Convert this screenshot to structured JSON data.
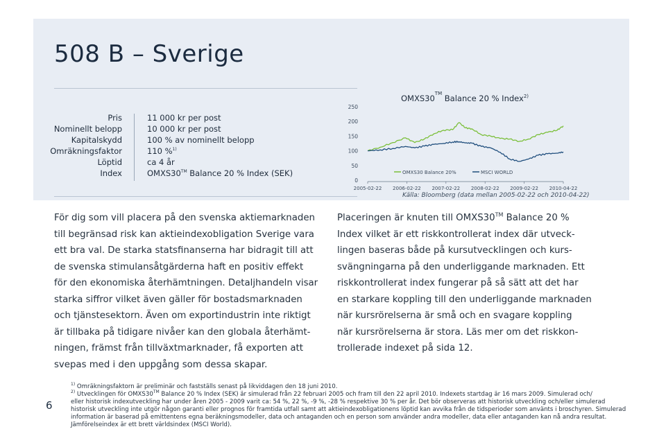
{
  "title": "508 B – Sverige",
  "specs": {
    "labels": [
      "Pris",
      "Nominellt belopp",
      "Kapitalskydd",
      "Omräkningsfaktor",
      "Löptid",
      "Index"
    ],
    "values": [
      "11 000 kr per post",
      "10 000 kr per post",
      "100 % av nominellt belopp",
      "110 %",
      "ca 4 år",
      "OMXS30"
    ],
    "omr_footnote": "1)",
    "index_tm": "TM",
    "index_rest": " Balance 20 % Index (SEK)"
  },
  "chart_data": {
    "type": "line",
    "title_main": "OMXS30",
    "title_tm": "TM",
    "title_rest": " Balance 20 % Index",
    "title_footnote": "2)",
    "ylim": [
      0,
      250
    ],
    "yticks": [
      "0",
      "50",
      "100",
      "150",
      "200",
      "250"
    ],
    "x_tick_labels": [
      "2005-02-22",
      "2006-02-22",
      "2007-02-22",
      "2008-02-22",
      "2009-02-22",
      "2010-04-22"
    ],
    "x_range": [
      "2005-02-22",
      "2010-04-22"
    ],
    "legend_position": "bottom-inside",
    "grid": false,
    "series": [
      {
        "name": "OMXS30 Balance 20%",
        "color": "#7bbf3a",
        "x": [
          "2005-02-22",
          "2005-06-22",
          "2005-10-22",
          "2006-02-22",
          "2006-05-22",
          "2006-08-22",
          "2006-11-22",
          "2007-02-22",
          "2007-05-22",
          "2007-07-22",
          "2007-09-22",
          "2007-11-22",
          "2008-02-22",
          "2008-05-22",
          "2008-08-22",
          "2008-11-22",
          "2009-02-22",
          "2009-05-22",
          "2009-08-22",
          "2009-11-22",
          "2010-02-22",
          "2010-04-22"
        ],
        "values": [
          100,
          112,
          128,
          144,
          128,
          140,
          158,
          170,
          172,
          196,
          178,
          175,
          155,
          150,
          142,
          140,
          132,
          140,
          155,
          163,
          170,
          185
        ]
      },
      {
        "name": "MSCI WORLD",
        "color": "#1f4e7d",
        "x": [
          "2005-02-22",
          "2005-06-22",
          "2005-10-22",
          "2006-02-22",
          "2006-05-22",
          "2006-08-22",
          "2006-11-22",
          "2007-02-22",
          "2007-05-22",
          "2007-07-22",
          "2007-09-22",
          "2007-11-22",
          "2008-02-22",
          "2008-05-22",
          "2008-08-22",
          "2008-11-22",
          "2009-02-22",
          "2009-05-22",
          "2009-08-22",
          "2009-11-22",
          "2010-02-22",
          "2010-04-22"
        ],
        "values": [
          100,
          103,
          108,
          115,
          110,
          116,
          122,
          125,
          130,
          131,
          127,
          126,
          115,
          110,
          95,
          72,
          64,
          72,
          85,
          90,
          92,
          96
        ]
      }
    ],
    "source": "Källa: Bloomberg (data mellan 2005-02-22 och 2010-04-22)"
  },
  "body_left": [
    "För dig som vill placera på den svenska aktiemarknaden",
    "till begränsad risk kan aktieindexobligation Sverige vara",
    "ett bra val. De starka statsfinanserna har bidragit till att",
    "de svenska stimulansåtgärderna haft en positiv effekt",
    "för den ekonomiska återhämtningen. Detaljhandeln visar",
    "starka siffror vilket även gäller för bostadsmarknaden",
    "och tjänstesektorn. Även om exportindustrin inte riktigt",
    "är tillbaka på tidigare nivåer kan den globala återhämt-",
    "ningen, främst från tillväxtmarknader, få exporten att",
    "svepas med i den uppgång som dessa skapar."
  ],
  "body_right": {
    "first_line_a": "Placeringen är knuten till OMXS30",
    "first_line_tm": "TM",
    "first_line_b": " Balance 20 %",
    "lines": [
      "Index vilket är ett riskkontrollerat index där utveck-",
      "lingen baseras både på kursutvecklingen och kurs-",
      "svängningarna på den underliggande marknaden. Ett",
      "riskkontrollerat index fungerar på så sätt att det har",
      "en starkare koppling till den underliggande marknaden",
      "när kursrörelserna är små och en svagare koppling",
      "när kursrörelserna är stora. Läs mer om det riskkon-",
      "trollerade indexet på sida 12."
    ]
  },
  "page_number": "6",
  "footnotes": {
    "fn1_mark": "1)",
    "fn1_text": " Omräkningsfaktorn är preliminär och fastställs senast på likviddagen den 18 juni 2010.",
    "fn2_mark": "2)",
    "fn2_a": " Utvecklingen för OMXS30",
    "fn2_tm": "TM",
    "fn2_b": " Balance 20 % Index (SEK) är simulerad från 22 februari 2005 och fram till den 22 april 2010. Indexets startdag är 16 mars 2009. Simulerad och/",
    "lines": [
      "eller historisk indexutveckling har under åren 2005 - 2009 varit ca: 54 %, 22 %, -9 %, -28 % respektive 30 % per år. Det bör observeras att historisk utveckling och/eller simulerad",
      "historisk utveckling inte utgör någon garanti eller prognos för framtida utfall samt att aktieindexobligationens löptid kan avvika från de tidsperioder som använts i broschyren. Simulerad",
      "information är baserad på emittentens egna beräkningsmodeller, data och antaganden och en person som använder andra modeller, data eller antaganden kan nå andra resultat.",
      "Jämförelseindex är ett brett världsindex (MSCI World)."
    ]
  }
}
